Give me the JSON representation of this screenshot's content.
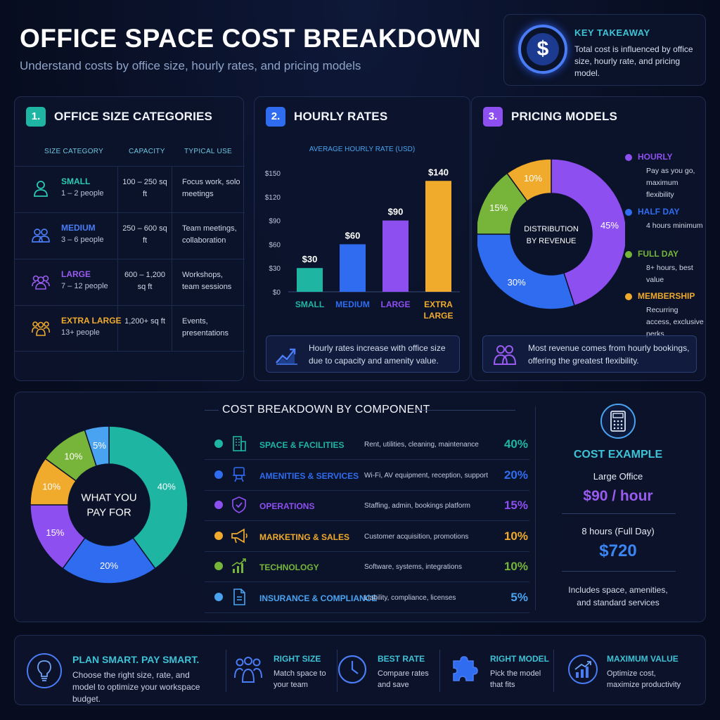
{
  "header": {
    "title": "OFFICE SPACE COST BREAKDOWN",
    "subtitle": "Understand costs by office size, hourly rates, and pricing models"
  },
  "key_takeaway": {
    "icon": "dollar-icon",
    "heading": "KEY TAKEAWAY",
    "text": "Total cost is influenced by office size, hourly rate, and pricing model."
  },
  "section1": {
    "number": "1.",
    "title": "OFFICE SIZE CATEGORIES",
    "columns": [
      "SIZE CATEGORY",
      "CAPACITY",
      "TYPICAL USE"
    ],
    "rows": [
      {
        "name": "SMALL",
        "people": "1 – 2 people",
        "capacity": "100 – 250 sq ft",
        "use": "Focus work, solo meetings",
        "color": "#2cc9b4",
        "icon": "person-icon"
      },
      {
        "name": "MEDIUM",
        "people": "3 – 6 people",
        "capacity": "250 – 600 sq ft",
        "use": "Team meetings, collaboration",
        "color": "#4a7cf5",
        "icon": "two-people-icon"
      },
      {
        "name": "LARGE",
        "people": "7 – 12 people",
        "capacity": "600 – 1,200 sq ft",
        "use": "Workshops, team sessions",
        "color": "#9a5cf0",
        "icon": "group-icon"
      },
      {
        "name": "EXTRA LARGE",
        "people": "13+ people",
        "capacity": "1,200+ sq ft",
        "use": "Events, presentations",
        "color": "#f0aa2c",
        "icon": "crowd-icon"
      }
    ]
  },
  "section2": {
    "number": "2.",
    "title": "HOURLY RATES",
    "note": "Hourly rates increase with office size due to capacity and amenity value.",
    "note_icon": "trend-up-icon"
  },
  "section3": {
    "number": "3.",
    "title": "PRICING MODELS",
    "legend": [
      {
        "name": "HOURLY",
        "desc": "Pay as you go, maximum flexibility",
        "color": "#8e4ff0"
      },
      {
        "name": "HALF DAY",
        "desc": "4 hours minimum",
        "color": "#2f6cf0"
      },
      {
        "name": "FULL DAY",
        "desc": "8+ hours, best value",
        "color": "#76b53a"
      },
      {
        "name": "MEMBERSHIP",
        "desc": "Recurring access, exclusive perks",
        "color": "#f0aa2c"
      }
    ],
    "note": "Most revenue comes from hourly bookings, offering the greatest flexibility.",
    "note_icon": "users-icon"
  },
  "section4": {
    "title": "COST BREAKDOWN BY COMPONENT",
    "components": [
      {
        "name": "SPACE & FACILITIES",
        "desc": "Rent, utilities, cleaning, maintenance",
        "pct": "40%",
        "color": "#1fb5a3",
        "icon": "building-icon"
      },
      {
        "name": "AMENITIES & SERVICES",
        "desc": "Wi-Fi, AV equipment, reception, support",
        "pct": "20%",
        "color": "#2f6cf0",
        "icon": "desk-chair-icon"
      },
      {
        "name": "OPERATIONS",
        "desc": "Staffing, admin, bookings platform",
        "pct": "15%",
        "color": "#8e4ff0",
        "icon": "shield-check-icon"
      },
      {
        "name": "MARKETING & SALES",
        "desc": "Customer acquisition, promotions",
        "pct": "10%",
        "color": "#f0aa2c",
        "icon": "megaphone-icon"
      },
      {
        "name": "TECHNOLOGY",
        "desc": "Software, systems, integrations",
        "pct": "10%",
        "color": "#76b53a",
        "icon": "chart-up-icon"
      },
      {
        "name": "INSURANCE & COMPLIANCE",
        "desc": "Liability, compliance, licenses",
        "pct": "5%",
        "color": "#4aa3f0",
        "icon": "document-icon"
      }
    ]
  },
  "cost_example": {
    "icon": "calculator-icon",
    "heading": "COST EXAMPLE",
    "office": "Large Office",
    "rate": "$90 / hour",
    "duration": "8 hours (Full Day)",
    "total": "$720",
    "note": "Includes space, amenities, and standard services"
  },
  "footer": {
    "headline": "PLAN SMART. PAY SMART.",
    "text": "Choose the right size, rate, and model to optimize your workspace budget.",
    "icon": "lightbulb-icon",
    "items": [
      {
        "title": "RIGHT SIZE",
        "text": "Match space to your team",
        "icon": "team-icon"
      },
      {
        "title": "BEST RATE",
        "text": "Compare rates and save",
        "icon": "clock-icon"
      },
      {
        "title": "RIGHT MODEL",
        "text": "Pick the model that fits",
        "icon": "puzzle-icon"
      },
      {
        "title": "MAXIMUM VALUE",
        "text": "Optimize cost, maximize productivity",
        "icon": "growth-chart-icon"
      }
    ]
  },
  "chart_data": [
    {
      "type": "bar",
      "title": "AVERAGE HOURLY RATE (USD)",
      "categories": [
        "SMALL",
        "MEDIUM",
        "LARGE",
        "EXTRA LARGE"
      ],
      "values": [
        30,
        60,
        90,
        140
      ],
      "value_labels": [
        "$30",
        "$60",
        "$90",
        "$140"
      ],
      "ylim": [
        0,
        150
      ],
      "yticks": [
        "$0",
        "$30",
        "$60",
        "$90",
        "$120",
        "$150"
      ],
      "colors": [
        "#1fb5a3",
        "#2f6cf0",
        "#8e4ff0",
        "#f0aa2c"
      ],
      "grid": false
    },
    {
      "type": "pie",
      "center_label": "DISTRIBUTION BY REVENUE",
      "categories": [
        "HOURLY",
        "HALF DAY",
        "FULL DAY",
        "MEMBERSHIP"
      ],
      "values": [
        45,
        30,
        15,
        10
      ],
      "value_labels": [
        "45%",
        "30%",
        "15%",
        "10%"
      ],
      "colors": [
        "#8e4ff0",
        "#2f6cf0",
        "#76b53a",
        "#f0aa2c"
      ]
    },
    {
      "type": "pie",
      "center_label": "WHAT YOU PAY FOR",
      "categories": [
        "SPACE & FACILITIES",
        "AMENITIES & SERVICES",
        "OPERATIONS",
        "MARKETING & SALES",
        "TECHNOLOGY",
        "INSURANCE & COMPLIANCE"
      ],
      "values": [
        40,
        20,
        15,
        10,
        10,
        5
      ],
      "value_labels": [
        "40%",
        "20%",
        "15%",
        "10%",
        "10%",
        "5%"
      ],
      "colors": [
        "#1fb5a3",
        "#2f6cf0",
        "#8e4ff0",
        "#f0aa2c",
        "#76b53a",
        "#4aa3f0"
      ]
    }
  ]
}
